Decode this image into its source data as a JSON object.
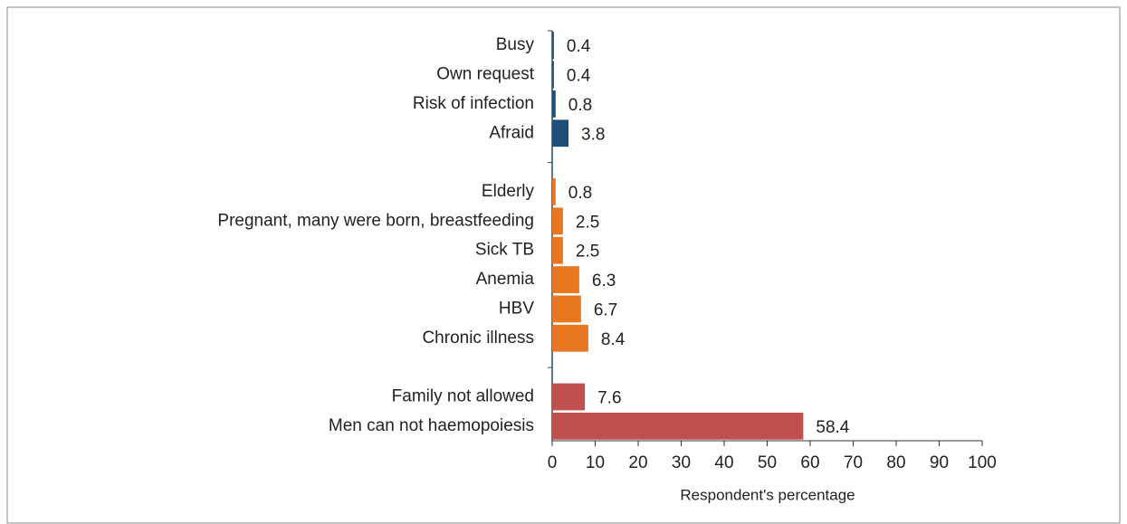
{
  "chart_data": {
    "type": "hbar",
    "categories": [
      "Busy",
      "Own request",
      "Risk of infection",
      "Afraid",
      null,
      "Elderly",
      "Pregnant, many  were born, breastfeeding",
      "Sick TB",
      "Anemia",
      "HBV",
      "Chronic illness",
      null,
      "Family not allowed",
      "Men can not haemopoiesis"
    ],
    "values": [
      0.4,
      0.4,
      0.8,
      3.8,
      null,
      0.8,
      2.5,
      2.5,
      6.3,
      6.7,
      8.4,
      null,
      7.6,
      58.4
    ],
    "colors": [
      "#1f4e79",
      "#1f4e79",
      "#1f4e79",
      "#1f4e79",
      null,
      "#e87722",
      "#e87722",
      "#e87722",
      "#e87722",
      "#e87722",
      "#e87722",
      null,
      "#c0504d",
      "#c0504d"
    ],
    "xlabel": "Respondent's percentage",
    "xlim": [
      0,
      100
    ],
    "xticks": [
      0,
      10,
      20,
      30,
      40,
      50,
      60,
      70,
      80,
      90,
      100
    ],
    "grid": false
  }
}
